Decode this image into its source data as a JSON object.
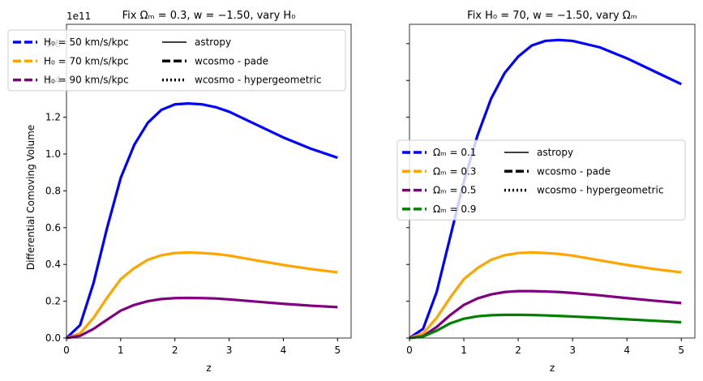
{
  "chart_data": [
    {
      "type": "line",
      "title": "Fix Ωₘ = 0.3, w = −1.50, vary H₀",
      "xlabel": "z",
      "ylabel": "Differential Comoving Volume",
      "offset_text": "1e11",
      "x": [
        0,
        0.25,
        0.5,
        0.75,
        1,
        1.25,
        1.5,
        1.75,
        2,
        2.25,
        2.5,
        2.75,
        3,
        3.5,
        4,
        4.5,
        5
      ],
      "series": [
        {
          "name": "H₀ = 50 km/s/kpc",
          "color": "#0000ff",
          "values": [
            0,
            0.07,
            0.3,
            0.6,
            0.87,
            1.05,
            1.17,
            1.24,
            1.27,
            1.275,
            1.27,
            1.255,
            1.23,
            1.16,
            1.09,
            1.03,
            0.98
          ]
        },
        {
          "name": "H₀ = 70 km/s/kpc",
          "color": "#ffa500",
          "values": [
            0,
            0.025,
            0.11,
            0.22,
            0.32,
            0.38,
            0.425,
            0.45,
            0.462,
            0.465,
            0.462,
            0.457,
            0.448,
            0.422,
            0.397,
            0.375,
            0.357
          ]
        },
        {
          "name": "H₀ = 90 km/s/kpc",
          "color": "#800080",
          "values": [
            0,
            0.012,
            0.05,
            0.1,
            0.149,
            0.18,
            0.2,
            0.212,
            0.217,
            0.218,
            0.217,
            0.215,
            0.21,
            0.198,
            0.186,
            0.176,
            0.168
          ]
        }
      ],
      "linestyle_legend": [
        "astropy",
        "wcosmo - pade",
        "wcosmo - hypergeometric"
      ],
      "xlim": [
        0,
        5.25
      ],
      "xticks": [
        0,
        1,
        2,
        3,
        4,
        5
      ],
      "ylim": [
        0,
        1.705
      ],
      "yticks": [
        {
          "value": 0,
          "label": "0.0"
        },
        {
          "value": 0.2,
          "label": "0.2"
        },
        {
          "value": 0.4,
          "label": "0.4"
        },
        {
          "value": 0.6,
          "label": "0.6"
        },
        {
          "value": 0.8,
          "label": "0.8"
        },
        {
          "value": 1.0,
          "label": "1.0"
        },
        {
          "value": 1.2,
          "label": "1.2"
        },
        {
          "value": 1.4,
          "label": "1.4"
        },
        {
          "value": 1.6,
          "label": "1.6"
        }
      ],
      "legend_loc": "upper left"
    },
    {
      "type": "line",
      "title": "Fix H₀ = 70, w = −1.50, vary Ωₘ",
      "xlabel": "z",
      "x": [
        0,
        0.25,
        0.5,
        0.75,
        1,
        1.25,
        1.5,
        1.75,
        2,
        2.25,
        2.5,
        2.75,
        3,
        3.5,
        4,
        4.5,
        5
      ],
      "series": [
        {
          "name": "Ωₘ = 0.1",
          "color": "#0000ff",
          "values": [
            0,
            0.05,
            0.25,
            0.55,
            0.85,
            1.1,
            1.3,
            1.44,
            1.53,
            1.59,
            1.615,
            1.62,
            1.615,
            1.58,
            1.52,
            1.45,
            1.38
          ]
        },
        {
          "name": "Ωₘ = 0.3",
          "color": "#ffa500",
          "values": [
            0,
            0.025,
            0.11,
            0.22,
            0.32,
            0.38,
            0.425,
            0.45,
            0.462,
            0.465,
            0.462,
            0.457,
            0.448,
            0.422,
            0.397,
            0.375,
            0.357
          ]
        },
        {
          "name": "Ωₘ = 0.5",
          "color": "#800080",
          "values": [
            0,
            0.01,
            0.06,
            0.125,
            0.18,
            0.215,
            0.237,
            0.25,
            0.255,
            0.255,
            0.253,
            0.25,
            0.245,
            0.232,
            0.217,
            0.203,
            0.19
          ]
        },
        {
          "name": "Ωₘ = 0.9",
          "color": "#008000",
          "values": [
            0,
            0.008,
            0.04,
            0.08,
            0.105,
            0.118,
            0.124,
            0.126,
            0.126,
            0.125,
            0.123,
            0.12,
            0.117,
            0.11,
            0.102,
            0.094,
            0.086
          ]
        }
      ],
      "linestyle_legend": [
        "astropy",
        "wcosmo - pade",
        "wcosmo - hypergeometric"
      ],
      "xlim": [
        0,
        5.25
      ],
      "xticks": [
        0,
        1,
        2,
        3,
        4,
        5
      ],
      "ylim": [
        0,
        1.705
      ],
      "yticks": [
        0,
        0.2,
        0.4,
        0.6,
        0.8,
        1.0,
        1.2,
        1.4,
        1.6
      ],
      "ytick_labels": false,
      "legend_loc": "center left"
    }
  ]
}
